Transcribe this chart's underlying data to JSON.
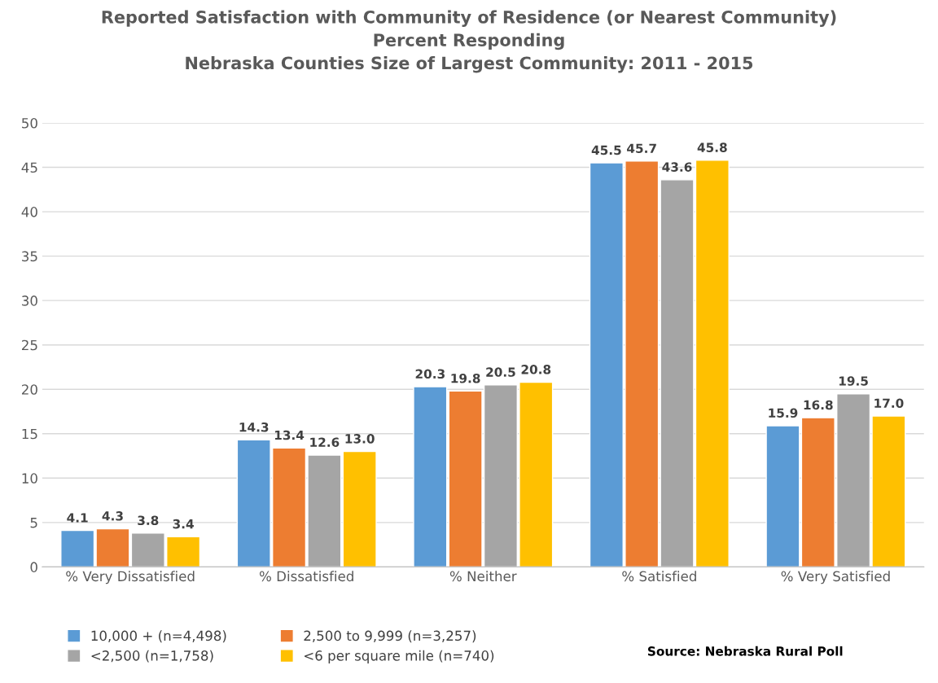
{
  "chart_data": {
    "type": "bar",
    "title": "Reported Satisfaction with Community of Residence (or Nearest Community)\nPercent Responding\nNebraska Counties Size of Largest Community: 2011 - 2015",
    "categories": [
      "% Very Dissatisfied",
      "% Dissatisfied",
      "% Neither",
      "% Satisfied",
      "% Very Satisfied"
    ],
    "series": [
      {
        "name": "10,000 + (n=4,498)",
        "color": "#5b9bd5",
        "values": [
          4.1,
          14.3,
          20.3,
          45.5,
          15.9
        ],
        "value_labels": [
          "4.1",
          "14.3",
          "20.3",
          "45.5",
          "15.9"
        ]
      },
      {
        "name": "2,500 to 9,999 (n=3,257)",
        "color": "#ed7d31",
        "values": [
          4.3,
          13.4,
          19.8,
          45.7,
          16.8
        ],
        "value_labels": [
          "4.3",
          "13.4",
          "19.8",
          "45.7",
          "16.8"
        ]
      },
      {
        "name": "<2,500 (n=1,758)",
        "color": "#a5a5a5",
        "values": [
          3.8,
          12.6,
          20.5,
          43.6,
          19.5
        ],
        "value_labels": [
          "3.8",
          "12.6",
          "20.5",
          "43.6",
          "19.5"
        ]
      },
      {
        "name": "<6 per square mile (n=740)",
        "color": "#ffc000",
        "values": [
          3.4,
          13.0,
          20.8,
          45.8,
          17.0
        ],
        "value_labels": [
          "3.4",
          "13.0",
          "20.8",
          "45.8",
          "17.0"
        ]
      }
    ],
    "ylim": [
      0,
      50
    ],
    "yticks": [
      0,
      5,
      10,
      15,
      20,
      25,
      30,
      35,
      40,
      45,
      50
    ],
    "grid": "y",
    "legend": "bottom",
    "annotations": [
      "Source: Nebraska Rural Poll"
    ]
  }
}
